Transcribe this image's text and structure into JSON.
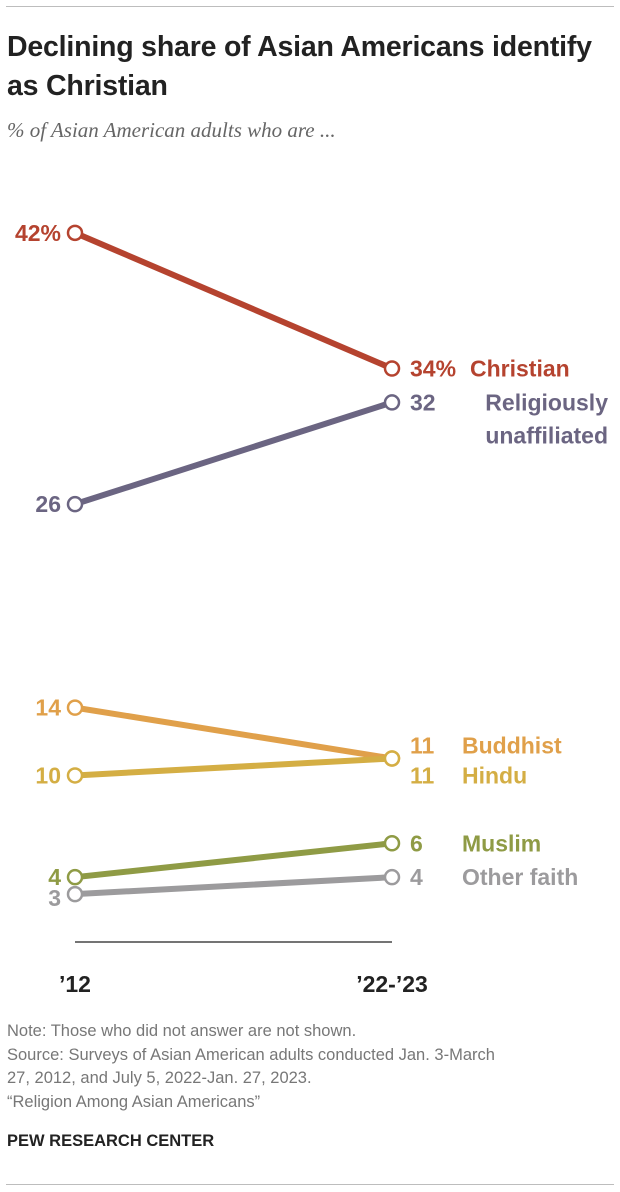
{
  "title": "Declining share of Asian Americans identify as Christian",
  "subtitle": "% of Asian American adults who are ...",
  "chart_data": {
    "type": "line",
    "x": [
      "’12",
      "’22-’23"
    ],
    "series": [
      {
        "name": "Christian",
        "values": [
          42,
          34
        ],
        "color": "#b5432f",
        "start_label": "42%",
        "end_label": "34%"
      },
      {
        "name": "Religiously unaffiliated",
        "label_lines": [
          "Religiously",
          "unaffiliated"
        ],
        "values": [
          26,
          32
        ],
        "color": "#6b6582",
        "start_label": "26",
        "end_label": "32"
      },
      {
        "name": "Buddhist",
        "values": [
          14,
          11
        ],
        "color": "#e0a04a",
        "start_label": "14",
        "end_label": "11"
      },
      {
        "name": "Hindu",
        "values": [
          10,
          11
        ],
        "color": "#d4ae44",
        "start_label": "10",
        "end_label": "11"
      },
      {
        "name": "Muslim",
        "values": [
          4,
          6
        ],
        "color": "#8f9b45",
        "start_label": "4",
        "end_label": "6"
      },
      {
        "name": "Other faith",
        "values": [
          3,
          4
        ],
        "color": "#9c9b9d",
        "start_label": "3",
        "end_label": "4"
      }
    ],
    "ylim": [
      0,
      45
    ],
    "axis_color": "#222222"
  },
  "notes": {
    "note": "Note: Those who did not answer are not shown.",
    "source": "Source: Surveys of Asian American adults conducted Jan. 3-March\n27, 2012, and July 5, 2022-Jan. 27, 2023.",
    "report": "“Religion Among Asian Americans”"
  },
  "brand": "PEW RESEARCH CENTER"
}
